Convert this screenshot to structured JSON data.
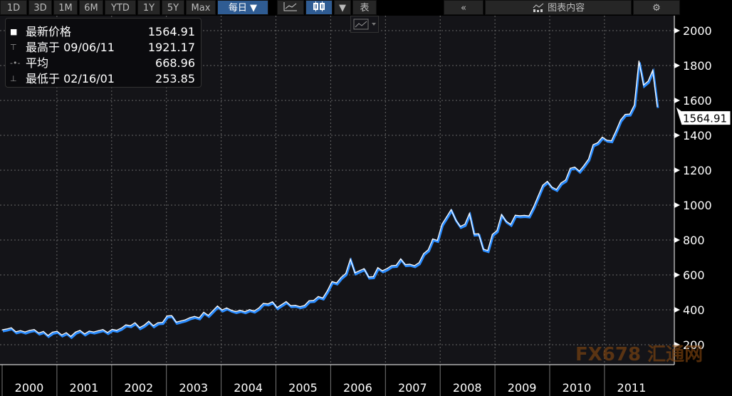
{
  "toolbar": {
    "ranges": [
      "1D",
      "3D",
      "1M",
      "6M",
      "YTD",
      "1Y",
      "5Y",
      "Max"
    ],
    "frequency": "每日 ▼",
    "table_label": "表",
    "collapse": "«",
    "content_label": "图表内容",
    "settings_icon": "gear-icon",
    "chart_icon": "line-chart-icon",
    "candle_icon": "candlestick-icon",
    "dropdown": "▼"
  },
  "legend": {
    "rows": [
      {
        "marker": "■",
        "label": "最新价格",
        "value": "1564.91"
      },
      {
        "marker": "⊤",
        "label": "最高于 09/06/11",
        "value": "1921.17"
      },
      {
        "marker": "-•-",
        "label": "平均",
        "value": "668.96"
      },
      {
        "marker": "⊥",
        "label": "最低于 02/16/01",
        "value": "253.85"
      }
    ]
  },
  "watermark": "FX678 汇通网",
  "colors": {
    "line": "#ffffff",
    "shadow": "#2a8cff",
    "bg": "#141418",
    "grid": "#666666"
  },
  "chart_data": {
    "type": "line",
    "title": "",
    "xlabel": "",
    "ylabel": "",
    "ylim": [
      130,
      2130
    ],
    "yticks": [
      200,
      400,
      600,
      800,
      1000,
      1200,
      1400,
      1600,
      1800,
      2000
    ],
    "years": [
      "2000",
      "2001",
      "2002",
      "2003",
      "2004",
      "2005",
      "2006",
      "2007",
      "2008",
      "2009",
      "2010",
      "2011"
    ],
    "last_value_label": "1564.91",
    "last_value": 1564.91,
    "series": [
      {
        "name": "最新价格",
        "frequency": "monthly",
        "values": [
          285,
          290,
          285,
          280,
          275,
          285,
          282,
          275,
          273,
          270,
          265,
          272,
          265,
          262,
          263,
          260,
          272,
          270,
          268,
          272,
          285,
          280,
          275,
          276,
          282,
          295,
          295,
          302,
          315,
          320,
          310,
          312,
          322,
          315,
          320,
          340,
          365,
          355,
          335,
          330,
          355,
          355,
          350,
          360,
          380,
          380,
          395,
          410,
          405,
          405,
          410,
          390,
          385,
          395,
          395,
          405,
          410,
          425,
          440,
          440,
          425,
          430,
          435,
          430,
          420,
          430,
          425,
          440,
          460,
          470,
          480,
          510,
          550,
          560,
          580,
          620,
          690,
          600,
          630,
          630,
          600,
          590,
          630,
          630,
          630,
          665,
          655,
          680,
          665,
          655,
          665,
          670,
          710,
          750,
          800,
          810,
          890,
          920,
          980,
          910,
          890,
          890,
          940,
          840,
          830,
          760,
          740,
          820,
          860,
          940,
          920,
          890,
          930,
          945,
          935,
          950,
          990,
          1040,
          1120,
          1130,
          1115,
          1090,
          1115,
          1150,
          1205,
          1230,
          1195,
          1215,
          1270,
          1340,
          1370,
          1390,
          1360,
          1375,
          1420,
          1500,
          1520,
          1510,
          1580,
          1820,
          1700,
          1710,
          1760,
          1565
        ]
      }
    ]
  }
}
